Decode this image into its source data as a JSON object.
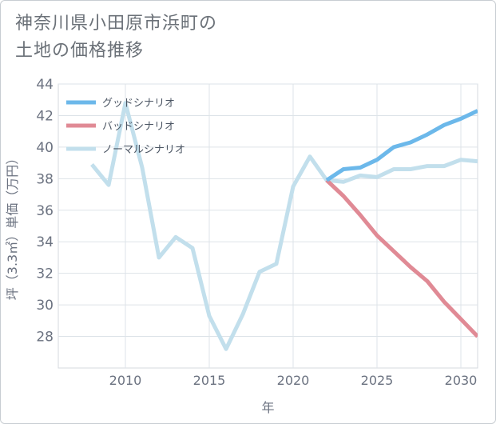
{
  "title": {
    "line1": "神奈川県小田原市浜町の",
    "line2": "土地の価格推移"
  },
  "chart_data": {
    "type": "line",
    "title": "神奈川県小田原市浜町の土地の価格推移",
    "xlabel": "年",
    "ylabel": "坪（3.3㎡）単価（万円）",
    "xlim": [
      2006,
      2031
    ],
    "ylim": [
      26,
      44
    ],
    "xticks": [
      2010,
      2015,
      2020,
      2025,
      2030
    ],
    "yticks": [
      28,
      30,
      32,
      34,
      36,
      38,
      40,
      42,
      44
    ],
    "grid": true,
    "legend_position": "top-left",
    "series": [
      {
        "name": "グッドシナリオ",
        "color": "#6cb8ea",
        "x": [
          2022,
          2023,
          2024,
          2025,
          2026,
          2027,
          2028,
          2029,
          2030,
          2031
        ],
        "y": [
          37.9,
          38.6,
          38.7,
          39.2,
          40.0,
          40.3,
          40.8,
          41.4,
          41.8,
          42.3
        ]
      },
      {
        "name": "バッドシナリオ",
        "color": "#e08a95",
        "x": [
          2022,
          2023,
          2024,
          2025,
          2026,
          2027,
          2028,
          2029,
          2030,
          2031
        ],
        "y": [
          37.9,
          36.9,
          35.7,
          34.4,
          33.4,
          32.4,
          31.5,
          30.2,
          29.1,
          28.0
        ]
      },
      {
        "name": "ノーマルシナリオ",
        "color": "#c2dfec",
        "x": [
          2008,
          2009,
          2010,
          2011,
          2012,
          2013,
          2014,
          2015,
          2016,
          2017,
          2018,
          2019,
          2020,
          2021,
          2022,
          2023,
          2024,
          2025,
          2026,
          2027,
          2028,
          2029,
          2030,
          2031
        ],
        "y": [
          38.9,
          37.6,
          42.8,
          38.7,
          33.0,
          34.3,
          33.6,
          29.3,
          27.2,
          29.4,
          32.1,
          32.6,
          37.5,
          39.4,
          37.9,
          37.8,
          38.2,
          38.1,
          38.6,
          38.6,
          38.8,
          38.8,
          39.2,
          39.1
        ]
      }
    ]
  }
}
